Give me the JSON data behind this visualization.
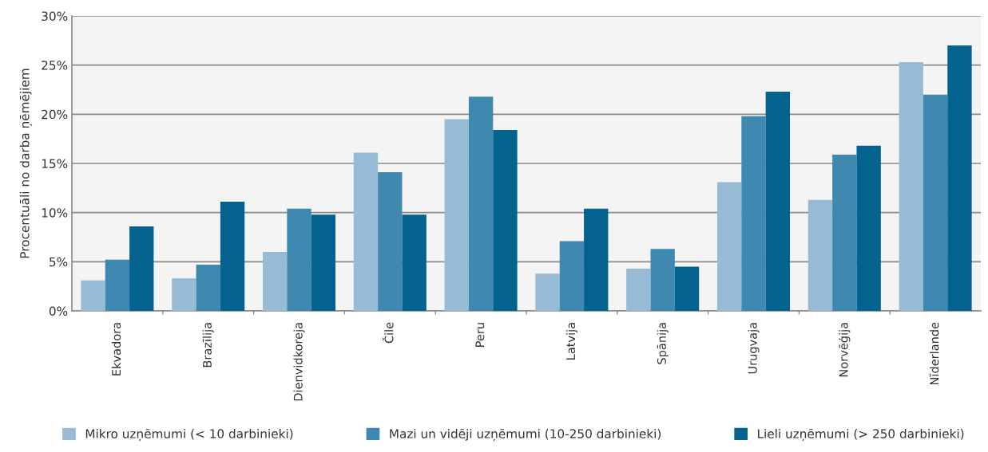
{
  "chart_data": {
    "type": "bar",
    "ylabel": "Procentuāli no darba ņēmējiem",
    "categories": [
      "Ekvadora",
      "Brazīlija",
      "Dienvidkoreja",
      "Čile",
      "Peru",
      "Latvija",
      "Spānija",
      "Urugvaja",
      "Norvēģija",
      "Nīderlande"
    ],
    "series": [
      {
        "name": "Mikro uzņēmumi (< 10 darbinieki)",
        "color": "#98bbd5",
        "values": [
          3.1,
          3.3,
          6.0,
          16.1,
          19.5,
          3.8,
          4.3,
          13.1,
          11.3,
          25.3
        ]
      },
      {
        "name": "Mazi un vidēji uzņēmumi (10-250 darbinieki)",
        "color": "#3f89b1",
        "values": [
          5.2,
          4.7,
          10.4,
          14.1,
          21.8,
          7.1,
          6.3,
          19.8,
          15.9,
          22.0
        ]
      },
      {
        "name": "Lieli uzņēmumi (> 250 darbinieki)",
        "color": "#03638e",
        "values": [
          8.6,
          11.1,
          9.8,
          9.8,
          18.4,
          10.4,
          4.5,
          22.3,
          16.8,
          27.0
        ]
      }
    ],
    "ylim": [
      0,
      30
    ],
    "yticks": [
      {
        "value": 0,
        "label": "0%"
      },
      {
        "value": 5,
        "label": "5%"
      },
      {
        "value": 10,
        "label": "10%"
      },
      {
        "value": 15,
        "label": "15%"
      },
      {
        "value": 20,
        "label": "20%"
      },
      {
        "value": 25,
        "label": "25%"
      },
      {
        "value": 30,
        "label": "30%"
      }
    ],
    "grid": "y",
    "legend": "bottom"
  }
}
